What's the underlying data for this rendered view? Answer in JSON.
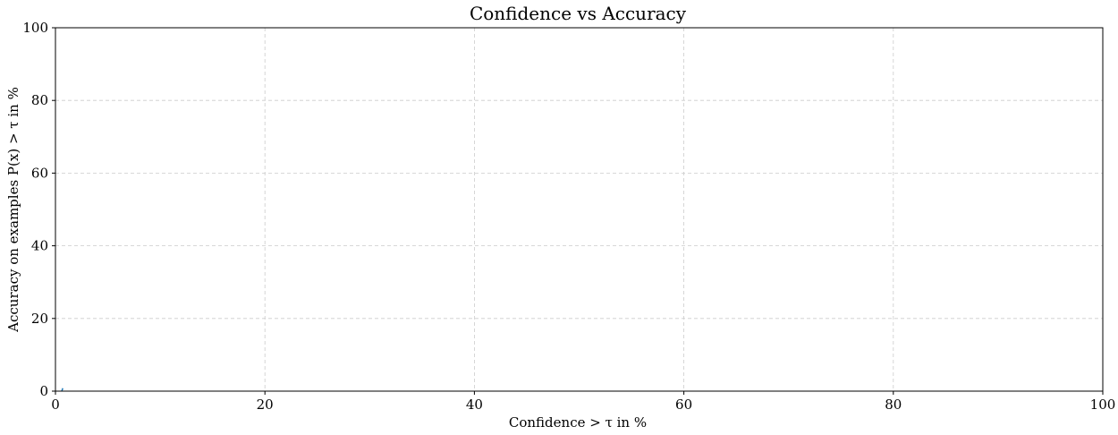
{
  "chart_data": {
    "type": "line",
    "title": "Confidence vs Accuracy",
    "xlabel": "Confidence > τ in %",
    "ylabel": "Accuracy on examples P(x) > τ in %",
    "xlim": [
      0,
      100
    ],
    "ylim": [
      0,
      100
    ],
    "xticks": [
      0,
      20,
      40,
      60,
      80,
      100
    ],
    "yticks": [
      0,
      20,
      40,
      60,
      80,
      100
    ],
    "grid": true,
    "series": [
      {
        "color": "#1f77b4",
        "x": [
          0.6,
          0.7
        ],
        "y": [
          0.0,
          0.8
        ]
      }
    ]
  }
}
